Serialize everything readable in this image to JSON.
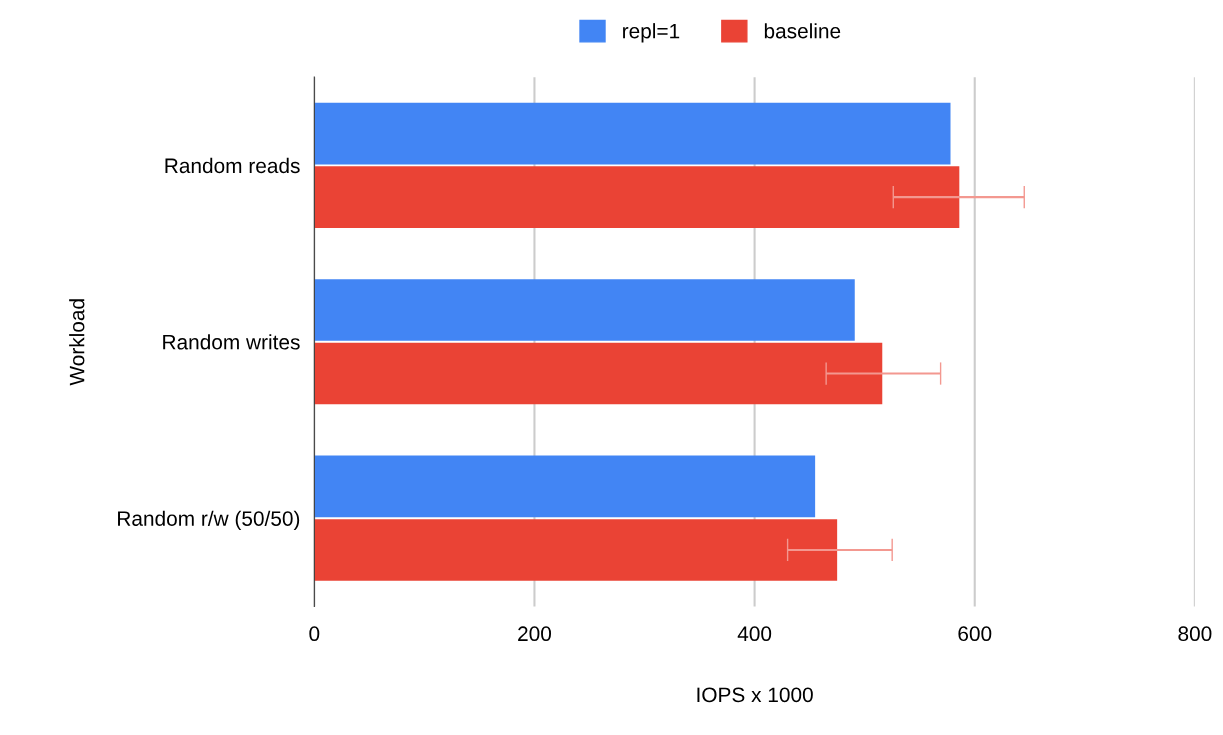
{
  "chart_data": {
    "type": "bar",
    "orientation": "horizontal",
    "xlabel": "IOPS x 1000",
    "ylabel": "Workload",
    "categories": [
      "Random reads",
      "Random writes",
      "Random r/w (50/50)"
    ],
    "series": [
      {
        "name": "repl=1",
        "color": "#4285f4",
        "values": [
          578,
          491,
          455
        ]
      },
      {
        "name": "baseline",
        "color": "#ea4335",
        "values": [
          586,
          516,
          475
        ],
        "errors": [
          [
            526,
            645
          ],
          [
            465,
            569
          ],
          [
            430,
            525
          ]
        ]
      }
    ],
    "xlim": [
      0,
      800
    ],
    "xticks": [
      0,
      200,
      400,
      600,
      800
    ],
    "grid": "x",
    "legend": "top"
  }
}
